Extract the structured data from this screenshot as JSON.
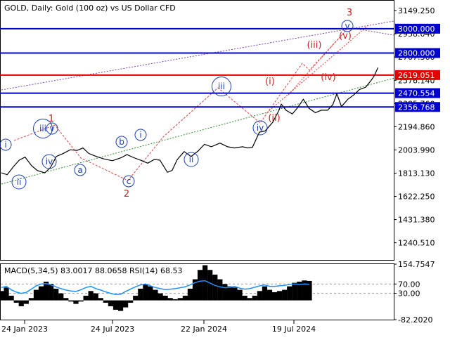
{
  "chart_data": [
    {
      "type": "line",
      "title": "GOLD, Daily:  Gold (100 oz) vs US Dollar CFD",
      "ylim": [
        1100,
        3230
      ],
      "y_ticks": [
        "3149.250",
        "2958.040",
        "2767.360",
        "2576.140",
        "2385.760",
        "2194.860",
        "2003.990",
        "1813.130",
        "1622.250",
        "1431.380",
        "1240.510"
      ],
      "x_ticks": [
        "24 Jan 2023",
        "24 Jul 2023",
        "22 Jan 2024",
        "19 Jul 2024"
      ],
      "grid": false,
      "levels": [
        {
          "label": "3000.000",
          "value": 3000.0,
          "color": "#0000cc"
        },
        {
          "label": "2800.000",
          "value": 2800.0,
          "color": "#0000cc"
        },
        {
          "label": "2619.051",
          "value": 2619.051,
          "color": "#e00000"
        },
        {
          "label": "2470.554",
          "value": 2470.554,
          "color": "#0000cc"
        },
        {
          "label": "2356.768",
          "value": 2356.768,
          "color": "#0000cc"
        }
      ],
      "series": [
        {
          "color": "#000000",
          "x": [
            "2022-12-15",
            "2022-12-25",
            "2023-01-05",
            "2023-01-15",
            "2023-01-25",
            "2023-02-05",
            "2023-02-15",
            "2023-02-28",
            "2023-03-10",
            "2023-03-20",
            "2023-04-01",
            "2023-04-13",
            "2023-04-25",
            "2023-05-05",
            "2023-05-15",
            "2023-05-28",
            "2023-06-10",
            "2023-06-25",
            "2023-07-10",
            "2023-07-20",
            "2023-08-01",
            "2023-08-15",
            "2023-08-25",
            "2023-09-05",
            "2023-09-15",
            "2023-09-28",
            "2023-10-06",
            "2023-10-15",
            "2023-10-27",
            "2023-11-08",
            "2023-11-20",
            "2023-12-01",
            "2023-12-13",
            "2023-12-28",
            "2024-01-10",
            "2024-01-22",
            "2024-02-05",
            "2024-02-14",
            "2024-02-22",
            "2024-03-05",
            "2024-03-15",
            "2024-03-28",
            "2024-04-08",
            "2024-04-12",
            "2024-04-20",
            "2024-05-01",
            "2024-05-10",
            "2024-05-20",
            "2024-05-30",
            "2024-06-10",
            "2024-06-20",
            "2024-07-01",
            "2024-07-10",
            "2024-07-17",
            "2024-07-25",
            "2024-08-05",
            "2024-08-15",
            "2024-08-25",
            "2024-09-05",
            "2024-09-15",
            "2024-09-20",
            "2024-09-26"
          ],
          "y": [
            1815,
            1800,
            1868,
            1920,
            1945,
            1875,
            1835,
            1815,
            1860,
            1950,
            1975,
            2005,
            2000,
            2020,
            1975,
            1950,
            1930,
            1915,
            1940,
            1965,
            1940,
            1915,
            1895,
            1925,
            1920,
            1820,
            1835,
            1925,
            1990,
            1950,
            1995,
            2050,
            2030,
            2060,
            2030,
            2020,
            2030,
            2020,
            2025,
            2150,
            2160,
            2230,
            2330,
            2380,
            2330,
            2300,
            2350,
            2420,
            2345,
            2310,
            2330,
            2330,
            2375,
            2465,
            2360,
            2420,
            2455,
            2500,
            2520,
            2580,
            2615,
            2680
          ]
        }
      ],
      "annotations": [
        {
          "text": "3",
          "color": "#cc2222"
        },
        {
          "text": "(v)",
          "color": "#cc2222"
        },
        {
          "text": "(iii)",
          "color": "#cc2222"
        },
        {
          "text": "(iv)",
          "color": "#cc2222"
        },
        {
          "text": "(i)",
          "color": "#cc2222"
        },
        {
          "text": "(ii)",
          "color": "#cc2222"
        },
        {
          "text": "1",
          "color": "#cc2222"
        },
        {
          "text": "2",
          "color": "#cc2222"
        },
        {
          "text": "i",
          "color": "#1a3fb5"
        },
        {
          "text": "ii",
          "color": "#1a3fb5"
        },
        {
          "text": "iii",
          "color": "#1a3fb5"
        },
        {
          "text": "iv",
          "color": "#1a3fb5"
        },
        {
          "text": "v",
          "color": "#1a3fb5"
        },
        {
          "text": "a",
          "color": "#1a3fb5"
        },
        {
          "text": "b",
          "color": "#1a3fb5"
        },
        {
          "text": "c",
          "color": "#1a3fb5"
        },
        {
          "text": "i",
          "color": "#1a3fb5"
        },
        {
          "text": "ii",
          "color": "#1a3fb5"
        },
        {
          "text": "iii",
          "color": "#1a3fb5"
        },
        {
          "text": "iv",
          "color": "#1a3fb5"
        },
        {
          "text": "v",
          "color": "#1a3fb5"
        }
      ]
    },
    {
      "type": "area",
      "title": "MACD(5,34,5) 83.0017 88.0658 RSI(14) 68.53",
      "ylim": [
        -82.202,
        154.7547
      ],
      "y_ticks": [
        "154.7547",
        "70.00",
        "30.00",
        "-82.2020"
      ],
      "series": [
        {
          "name": "MACD",
          "color": "#000000",
          "values": [
            40,
            55,
            20,
            -10,
            -25,
            -15,
            10,
            45,
            60,
            80,
            70,
            50,
            30,
            10,
            -5,
            -15,
            -5,
            20,
            40,
            30,
            10,
            -10,
            -25,
            -40,
            -45,
            -30,
            -10,
            20,
            50,
            70,
            60,
            45,
            30,
            20,
            10,
            5,
            10,
            20,
            50,
            90,
            130,
            150,
            130,
            110,
            90,
            70,
            60,
            55,
            45,
            20,
            10,
            20,
            40,
            60,
            45,
            35,
            40,
            45,
            60,
            75,
            80,
            85,
            83
          ]
        },
        {
          "name": "RSI",
          "color": "#1e90ff",
          "values": [
            55,
            60,
            45,
            35,
            30,
            34,
            48,
            62,
            70,
            72,
            66,
            58,
            50,
            44,
            40,
            38,
            45,
            55,
            60,
            50,
            44,
            36,
            30,
            25,
            26,
            38,
            48,
            58,
            66,
            70,
            62,
            55,
            50,
            46,
            48,
            50,
            54,
            58,
            66,
            76,
            82,
            84,
            74,
            64,
            58,
            54,
            56,
            60,
            52,
            48,
            50,
            56,
            62,
            66,
            60,
            60,
            62,
            64,
            68,
            70,
            68,
            70,
            68.53
          ]
        }
      ]
    }
  ]
}
